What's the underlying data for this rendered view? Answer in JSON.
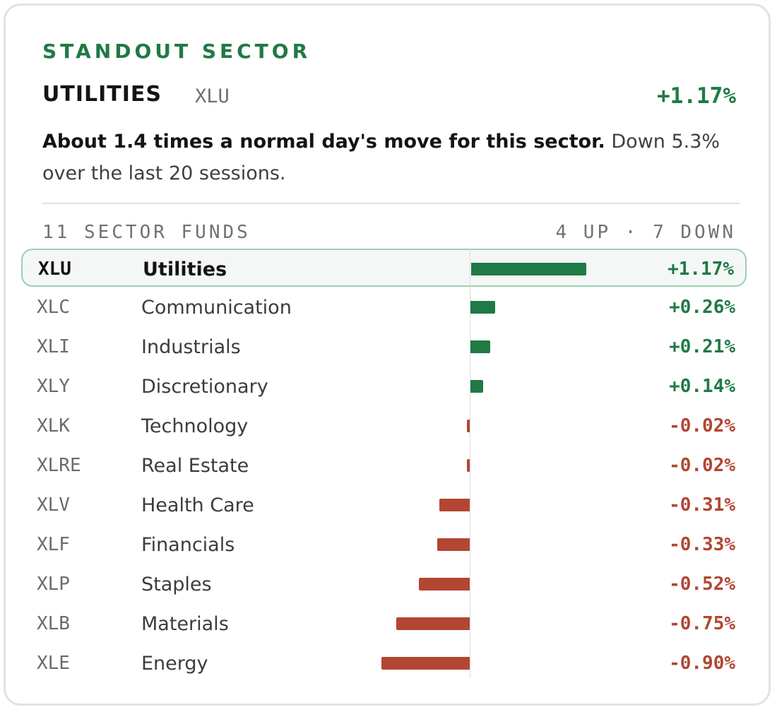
{
  "card": {
    "eyebrow": "STANDOUT SECTOR",
    "sector_name": "UTILITIES",
    "sector_ticker": "XLU",
    "sector_change": "+1.17%",
    "summary_bold": "About 1.4 times a normal day's move for this sector.",
    "summary_rest": " Down 5.3% over the last 20 sessions.",
    "funds_label": "11 SECTOR FUNDS",
    "funds_summary": "4 UP · 7 DOWN"
  },
  "colors": {
    "up": "#1f7a45",
    "down": "#b24632"
  },
  "chart_data": {
    "type": "bar",
    "orientation": "horizontal",
    "xlim": [
      -0.9,
      1.17
    ],
    "highlight": "XLU",
    "rows": [
      {
        "ticker": "XLU",
        "name": "Utilities",
        "value": 1.17,
        "label": "+1.17%"
      },
      {
        "ticker": "XLC",
        "name": "Communication",
        "value": 0.26,
        "label": "+0.26%"
      },
      {
        "ticker": "XLI",
        "name": "Industrials",
        "value": 0.21,
        "label": "+0.21%"
      },
      {
        "ticker": "XLY",
        "name": "Discretionary",
        "value": 0.14,
        "label": "+0.14%"
      },
      {
        "ticker": "XLK",
        "name": "Technology",
        "value": -0.02,
        "label": "-0.02%"
      },
      {
        "ticker": "XLRE",
        "name": "Real Estate",
        "value": -0.02,
        "label": "-0.02%"
      },
      {
        "ticker": "XLV",
        "name": "Health Care",
        "value": -0.31,
        "label": "-0.31%"
      },
      {
        "ticker": "XLF",
        "name": "Financials",
        "value": -0.33,
        "label": "-0.33%"
      },
      {
        "ticker": "XLP",
        "name": "Staples",
        "value": -0.52,
        "label": "-0.52%"
      },
      {
        "ticker": "XLB",
        "name": "Materials",
        "value": -0.75,
        "label": "-0.75%"
      },
      {
        "ticker": "XLE",
        "name": "Energy",
        "value": -0.9,
        "label": "-0.90%"
      }
    ]
  }
}
